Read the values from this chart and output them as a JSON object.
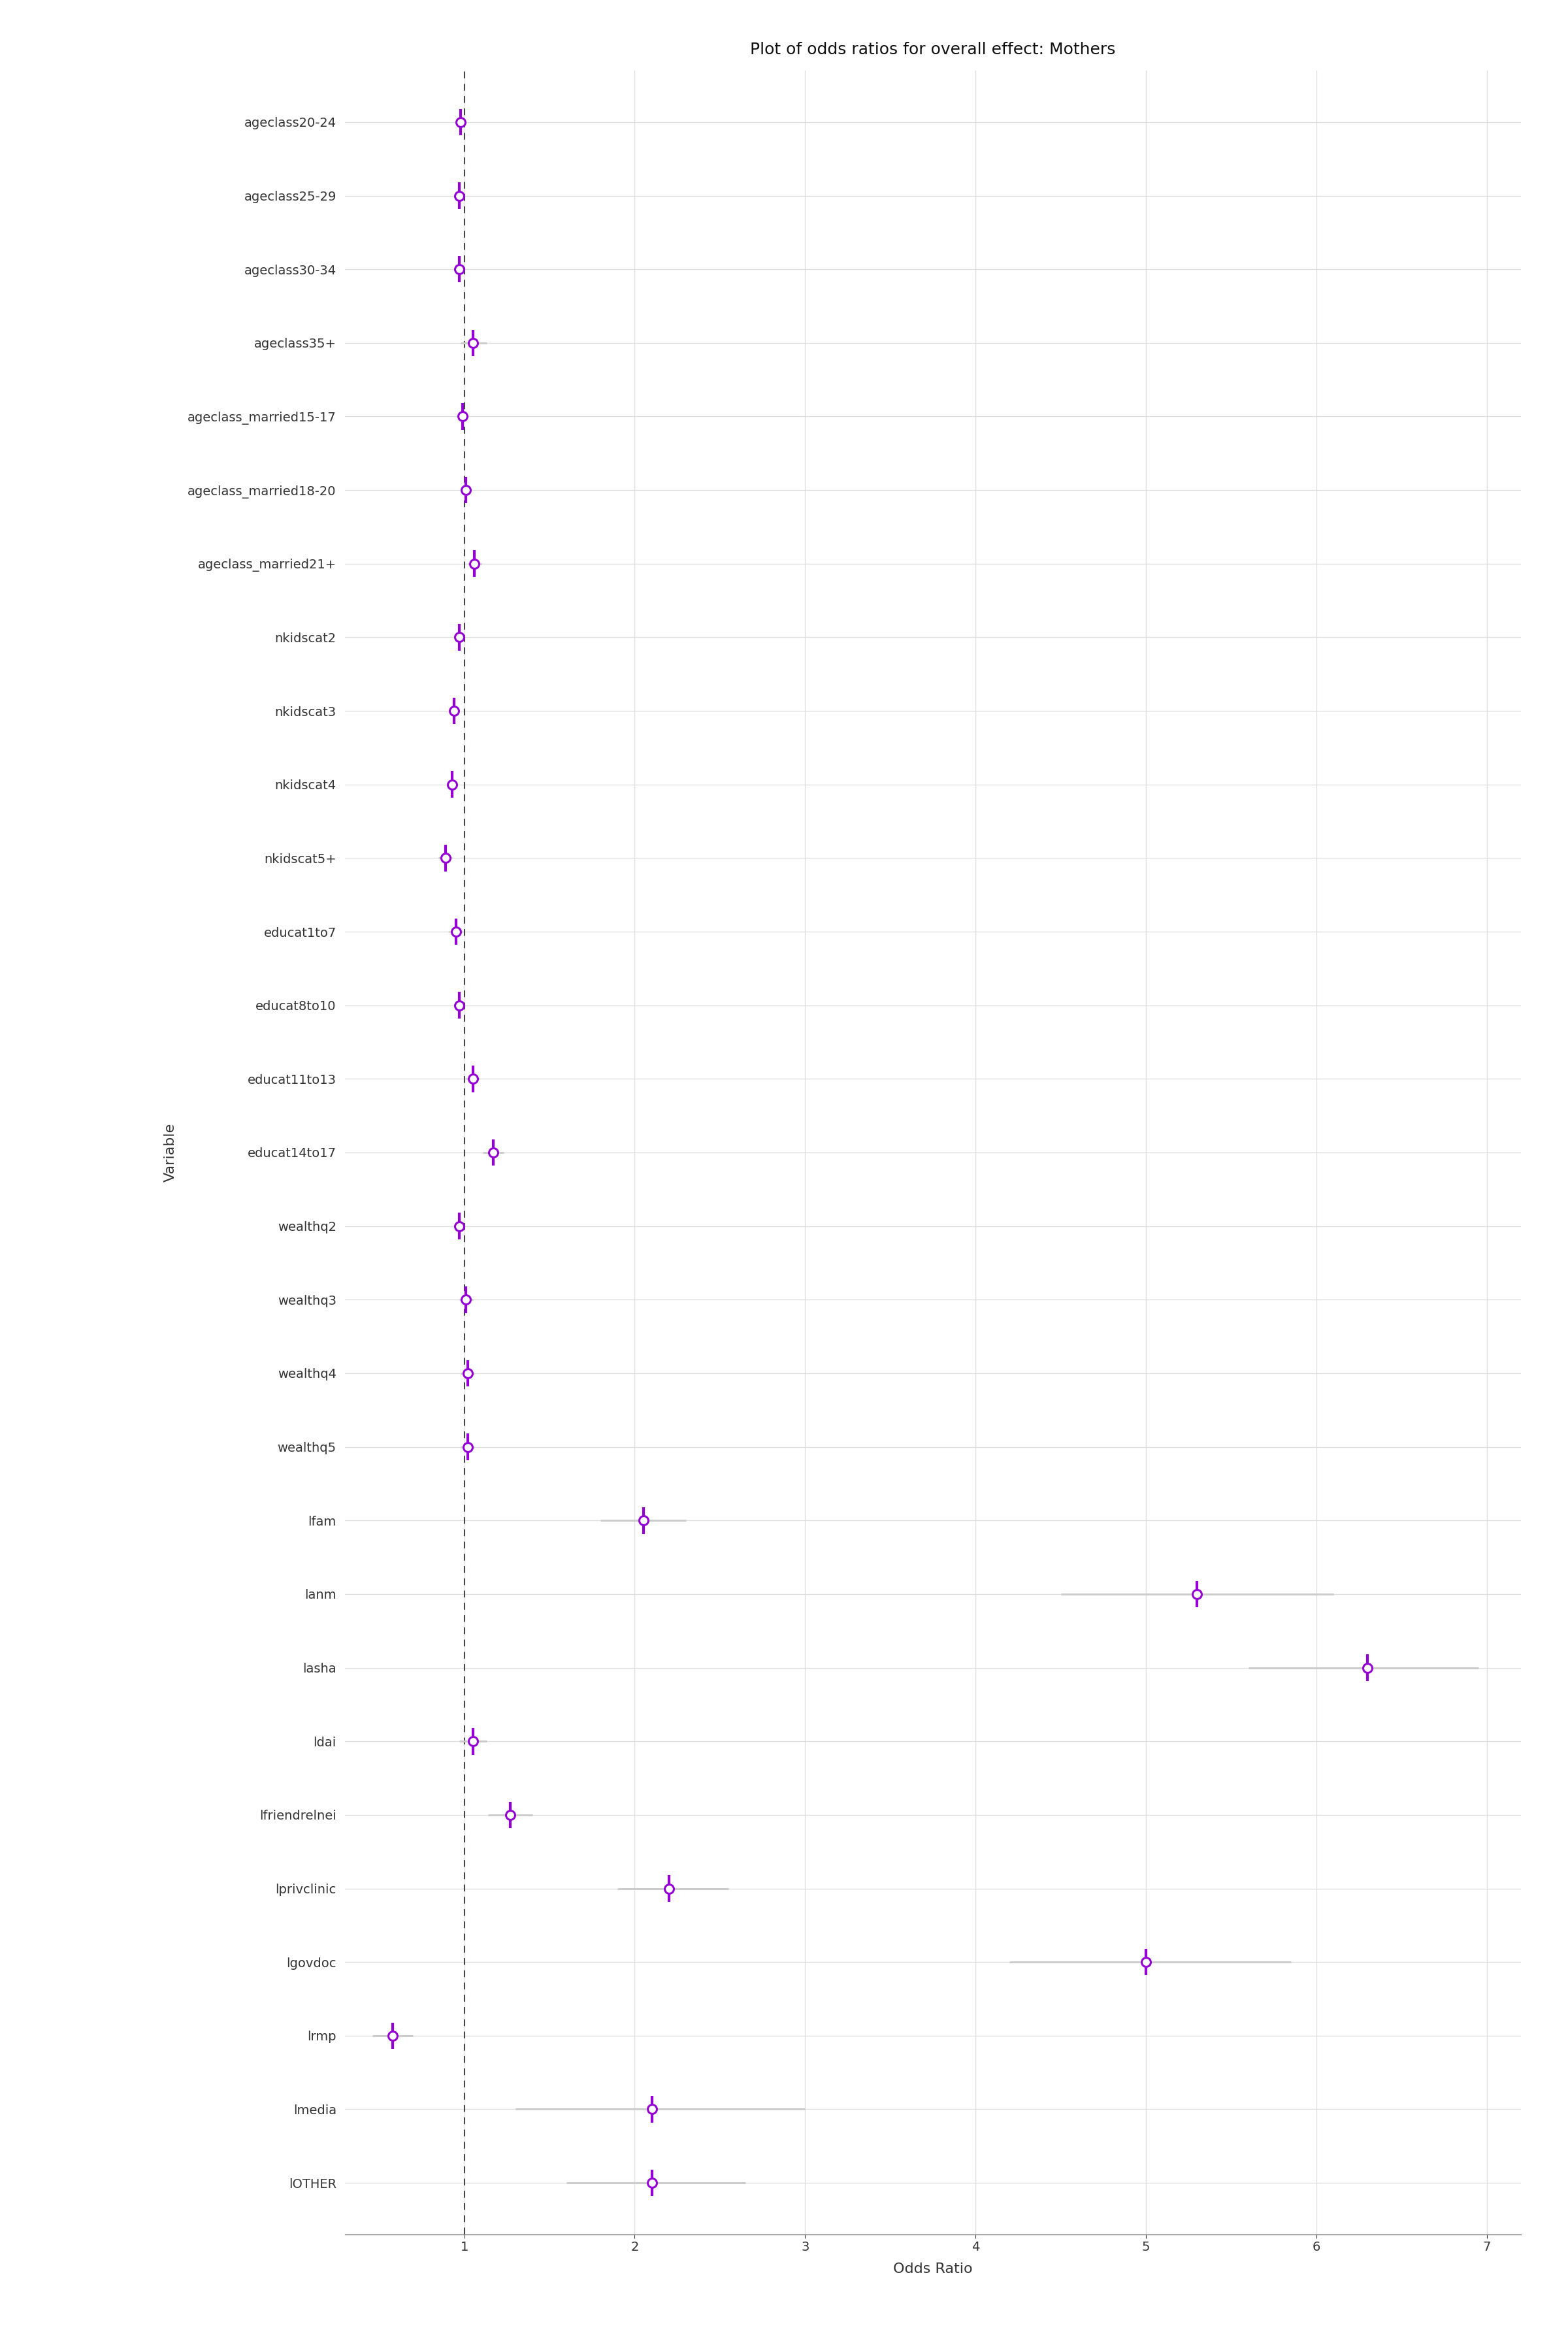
{
  "title": "Plot of odds ratios for overall effect: Mothers",
  "xlabel": "Odds Ratio",
  "ylabel": "Variable",
  "variables": [
    "ageclass20-24",
    "ageclass25-29",
    "ageclass30-34",
    "ageclass35+",
    "ageclass_married15-17",
    "ageclass_married18-20",
    "ageclass_married21+",
    "nkidscat2",
    "nkidscat3",
    "nkidscat4",
    "nkidscat5+",
    "educat1to7",
    "educat8to10",
    "educat11to13",
    "educat14to17",
    "wealthq2",
    "wealthq3",
    "wealthq4",
    "wealthq5",
    "lfam",
    "lanm",
    "lasha",
    "ldai",
    "lfriendrelnei",
    "lprivclinic",
    "lgovdoc",
    "lrmp",
    "lmedia",
    "lOTHER"
  ],
  "or": [
    0.98,
    0.97,
    0.97,
    1.05,
    0.99,
    1.01,
    1.06,
    0.97,
    0.94,
    0.93,
    0.89,
    0.95,
    0.97,
    1.05,
    1.17,
    0.97,
    1.01,
    1.02,
    1.02,
    2.05,
    5.3,
    6.3,
    1.05,
    1.27,
    2.2,
    5.0,
    0.58,
    2.1,
    2.1
  ],
  "ci_low": [
    0.96,
    0.95,
    0.95,
    0.98,
    0.96,
    0.98,
    1.02,
    0.95,
    0.91,
    0.9,
    0.85,
    0.91,
    0.94,
    1.01,
    1.11,
    0.94,
    0.97,
    0.98,
    0.98,
    1.8,
    4.5,
    5.6,
    0.97,
    1.14,
    1.9,
    4.2,
    0.46,
    1.3,
    1.6
  ],
  "ci_high": [
    1.0,
    0.99,
    0.99,
    1.13,
    1.02,
    1.04,
    1.1,
    0.99,
    0.97,
    0.96,
    0.93,
    0.99,
    1.0,
    1.09,
    1.23,
    1.0,
    1.05,
    1.06,
    1.06,
    2.3,
    6.1,
    6.95,
    1.13,
    1.4,
    2.55,
    5.85,
    0.7,
    3.0,
    2.65
  ],
  "point_color": "#9400D3",
  "ci_line_color": "#CCCCCC",
  "ref_line_color": "#444444",
  "grid_color": "#DDDDDD",
  "background_color": "#FFFFFF",
  "ref_line_x": 1.0,
  "xlim": [
    0.3,
    7.2
  ],
  "xticks": [
    1,
    2,
    3,
    4,
    5,
    6,
    7
  ],
  "title_fontsize": 18,
  "axis_label_fontsize": 16,
  "tick_fontsize": 14,
  "marker_size": 10,
  "marker_edge_width": 2.2,
  "ci_linewidth": 2.2,
  "tick_linewidth": 3.0
}
